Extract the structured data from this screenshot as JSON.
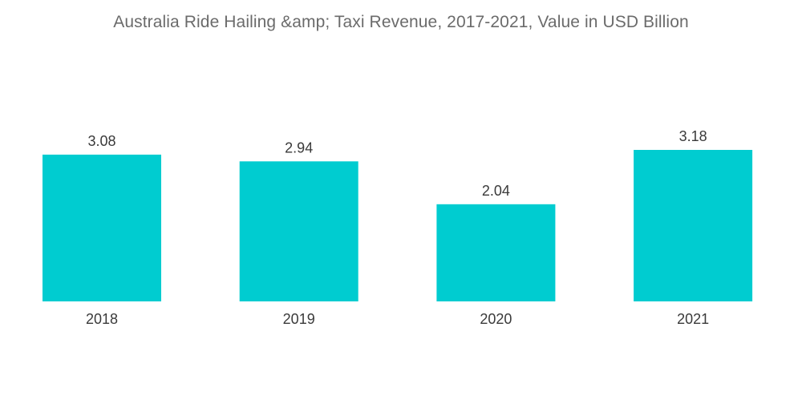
{
  "chart_data": {
    "type": "bar",
    "title": "Australia Ride Hailing &amp; Taxi Revenue, 2017-2021, Value in USD Billion",
    "categories": [
      "2018",
      "2019",
      "2020",
      "2021"
    ],
    "values": [
      3.08,
      2.94,
      2.04,
      3.18
    ],
    "value_labels": [
      "3.08",
      "2.94",
      "2.04",
      "3.18"
    ],
    "xlabel": "",
    "ylabel": "",
    "ylim": [
      0,
      3.18
    ],
    "grid": false,
    "legend": "none",
    "colors": {
      "bar": "#00ccd0"
    }
  }
}
